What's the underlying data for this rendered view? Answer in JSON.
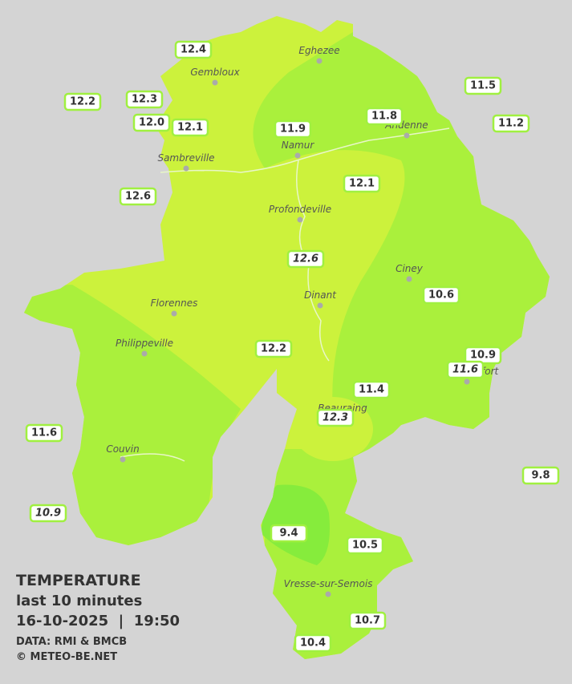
{
  "legend": {
    "title": "TEMPERATURE",
    "subtitle": "last 10 minutes",
    "datetime": "16-10-2025  |  19:50",
    "source": "DATA: RMI & BMCB",
    "copyright": "© METEO-BE.NET"
  },
  "towns": [
    {
      "name": "Eghezee"
    },
    {
      "name": "Gembloux"
    },
    {
      "name": "Andenne"
    },
    {
      "name": "Namur"
    },
    {
      "name": "Sambreville"
    },
    {
      "name": "Profondeville"
    },
    {
      "name": "Ciney"
    },
    {
      "name": "Dinant"
    },
    {
      "name": "Florennes"
    },
    {
      "name": "Philippeville"
    },
    {
      "name": "Couvin"
    },
    {
      "name": "Vresse-sur-Semois"
    },
    {
      "name": "Rochefort"
    },
    {
      "name": "Beauraing"
    }
  ],
  "stations": [
    {
      "value": "12.4"
    },
    {
      "value": "12.2"
    },
    {
      "value": "12.3"
    },
    {
      "value": "12.0"
    },
    {
      "value": "12.1"
    },
    {
      "value": "11.9"
    },
    {
      "value": "11.8"
    },
    {
      "value": "11.5"
    },
    {
      "value": "11.2"
    },
    {
      "value": "12.6"
    },
    {
      "value": "12.1"
    },
    {
      "value": "12.6",
      "italic": true
    },
    {
      "value": "10.6"
    },
    {
      "value": "10.9"
    },
    {
      "value": "11.6",
      "italic": true
    },
    {
      "value": "12.2"
    },
    {
      "value": "11.4"
    },
    {
      "value": "12.3",
      "italic": true
    },
    {
      "value": "11.6"
    },
    {
      "value": "9.8"
    },
    {
      "value": "10.9",
      "italic": true
    },
    {
      "value": "9.4"
    },
    {
      "value": "10.5"
    },
    {
      "value": "10.7"
    },
    {
      "value": "10.4"
    }
  ]
}
